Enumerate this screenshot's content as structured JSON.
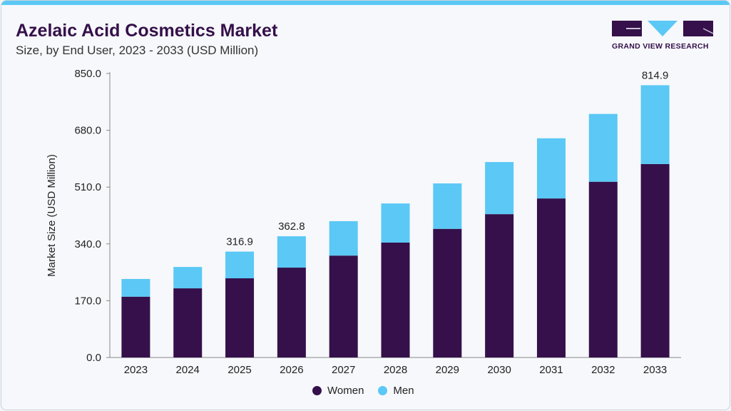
{
  "header": {
    "title": "Azelaic Acid Cosmetics Market",
    "subtitle": "Size, by End User, 2023 - 2033 (USD Million)"
  },
  "logo": {
    "text": "GRAND VIEW RESEARCH"
  },
  "colors": {
    "women": "#35104a",
    "men": "#5bc8f5",
    "accent": "#5bc8f5"
  },
  "chart_data": {
    "type": "bar",
    "stacked": true,
    "title": "Azelaic Acid Cosmetics Market",
    "ylabel": "Market Size (USD Million)",
    "xlabel": "",
    "ylim": [
      0,
      850
    ],
    "yticks": [
      "0.0",
      "170.0",
      "340.0",
      "510.0",
      "680.0",
      "850.0"
    ],
    "grid": false,
    "legend": "bottom",
    "categories": [
      "2023",
      "2024",
      "2025",
      "2026",
      "2027",
      "2028",
      "2029",
      "2030",
      "2031",
      "2032",
      "2033"
    ],
    "series": [
      {
        "name": "Women",
        "values": [
          182,
          207,
          237,
          269,
          305,
          344,
          385,
          429,
          476,
          526,
          579
        ]
      },
      {
        "name": "Men",
        "values": [
          53,
          64,
          79.9,
          93.8,
          103,
          117,
          136,
          156,
          180,
          203,
          235.9
        ]
      }
    ],
    "data_labels": {
      "2025": "316.9",
      "2026": "362.8",
      "2033": "814.9"
    }
  }
}
